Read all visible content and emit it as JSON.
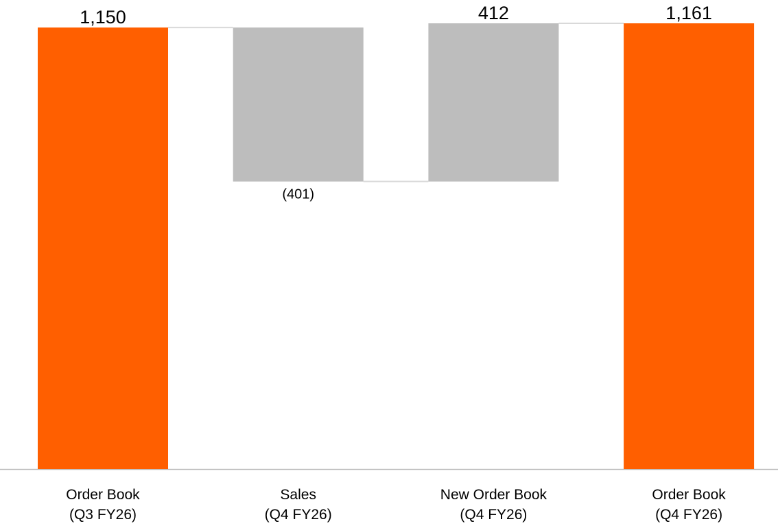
{
  "chart_data": {
    "type": "bar",
    "subtype": "waterfall",
    "title": "",
    "xlabel": "",
    "ylabel": "",
    "ylim": [
      0,
      1161
    ],
    "grid": false,
    "legend": "none",
    "categories": [
      [
        "Order Book",
        "(Q3 FY26)"
      ],
      [
        "Sales",
        "(Q4 FY26)"
      ],
      [
        "New Order Book",
        "(Q4 FY26)"
      ],
      [
        "Order Book",
        "(Q4 FY26)"
      ]
    ],
    "bars": [
      {
        "kind": "total",
        "start": 0,
        "end": 1150,
        "label": "1,150",
        "color": "#ff5f00"
      },
      {
        "kind": "decrease",
        "start": 1150,
        "end": 749,
        "label": "(401)",
        "color": "#bdbdbd"
      },
      {
        "kind": "increase",
        "start": 749,
        "end": 1161,
        "label": "412",
        "color": "#bdbdbd"
      },
      {
        "kind": "total",
        "start": 0,
        "end": 1161,
        "label": "1,161",
        "color": "#ff5f00"
      }
    ],
    "connector_color": "#d9d9d9",
    "axis_color": "#bfbfbf"
  }
}
